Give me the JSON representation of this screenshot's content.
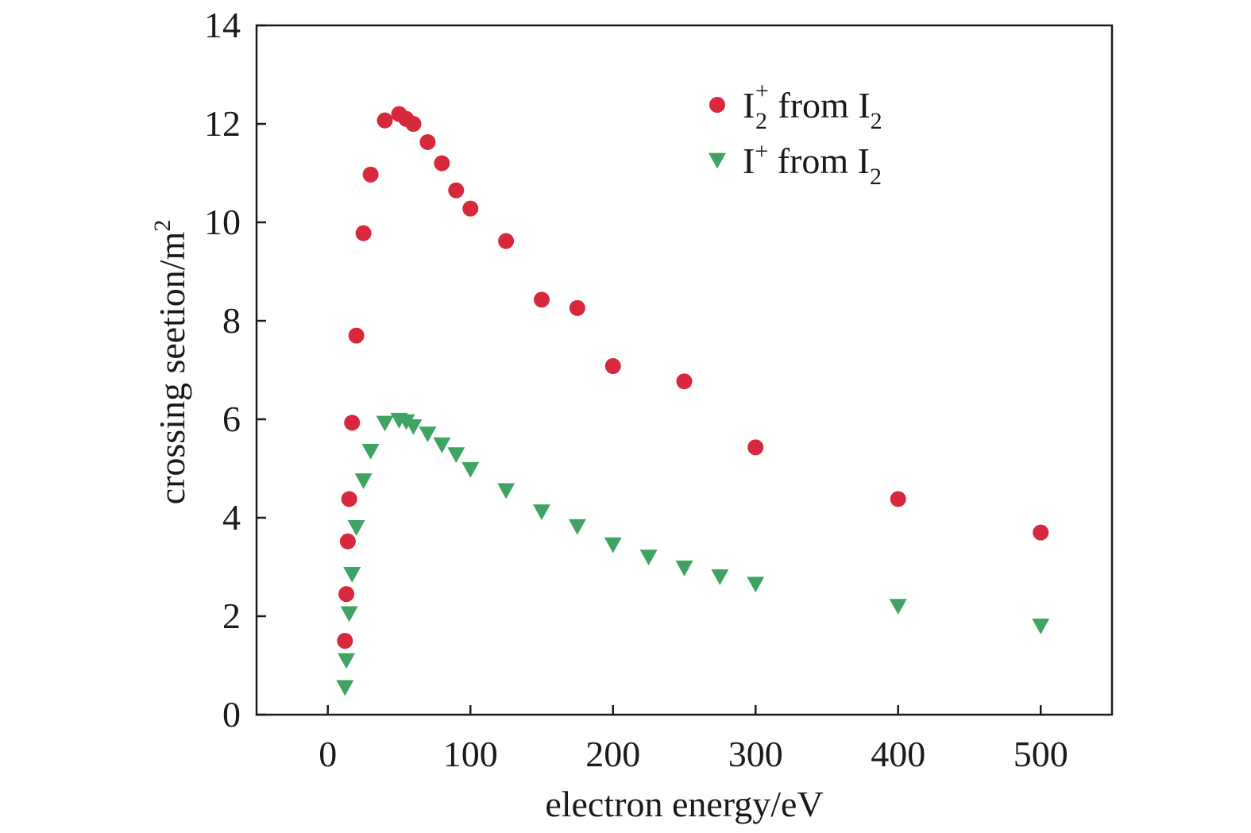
{
  "chart_data": {
    "type": "scatter",
    "xlabel": "electron energy/eV",
    "ylabel": "crossing seetion/m",
    "ylabel_sup": "2",
    "xlim": [
      -50,
      550
    ],
    "ylim": [
      0,
      14
    ],
    "xticks": [
      0,
      100,
      200,
      300,
      400,
      500
    ],
    "yticks": [
      0,
      2,
      4,
      6,
      8,
      10,
      12,
      14
    ],
    "grid": false,
    "legend_position": "top-right",
    "series": [
      {
        "name": "I2+ from I2",
        "legend": {
          "base": "I",
          "sub": "2",
          "sup": "+",
          "rest": " from I",
          "rest_sub": "2"
        },
        "marker": "circle",
        "color": "#d8283e",
        "points": [
          [
            12,
            1.5
          ],
          [
            13,
            2.45
          ],
          [
            14,
            3.52
          ],
          [
            15,
            4.38
          ],
          [
            17,
            5.93
          ],
          [
            20,
            7.7
          ],
          [
            25,
            9.78
          ],
          [
            30,
            10.97
          ],
          [
            40,
            12.07
          ],
          [
            50,
            12.2
          ],
          [
            55,
            12.1
          ],
          [
            60,
            12.0
          ],
          [
            70,
            11.63
          ],
          [
            80,
            11.2
          ],
          [
            90,
            10.65
          ],
          [
            100,
            10.28
          ],
          [
            125,
            9.62
          ],
          [
            150,
            8.43
          ],
          [
            175,
            8.26
          ],
          [
            200,
            7.08
          ],
          [
            250,
            6.77
          ],
          [
            300,
            5.43
          ],
          [
            400,
            4.38
          ],
          [
            500,
            3.7
          ]
        ]
      },
      {
        "name": "I+ from I2",
        "legend": {
          "base": "I",
          "sub": "",
          "sup": "+",
          "rest": " from I",
          "rest_sub": "2"
        },
        "marker": "triangle-down",
        "color": "#3fa463",
        "points": [
          [
            12,
            0.55
          ],
          [
            13,
            1.1
          ],
          [
            15,
            2.05
          ],
          [
            17,
            2.85
          ],
          [
            20,
            3.8
          ],
          [
            25,
            4.75
          ],
          [
            30,
            5.35
          ],
          [
            40,
            5.92
          ],
          [
            50,
            5.98
          ],
          [
            55,
            5.95
          ],
          [
            60,
            5.85
          ],
          [
            70,
            5.7
          ],
          [
            80,
            5.48
          ],
          [
            90,
            5.28
          ],
          [
            100,
            4.98
          ],
          [
            125,
            4.55
          ],
          [
            150,
            4.12
          ],
          [
            175,
            3.82
          ],
          [
            200,
            3.45
          ],
          [
            225,
            3.2
          ],
          [
            250,
            2.98
          ],
          [
            275,
            2.8
          ],
          [
            300,
            2.65
          ],
          [
            400,
            2.2
          ],
          [
            500,
            1.8
          ]
        ]
      }
    ]
  },
  "colors": {
    "axis": "#1a1a1a",
    "background": "#ffffff"
  }
}
